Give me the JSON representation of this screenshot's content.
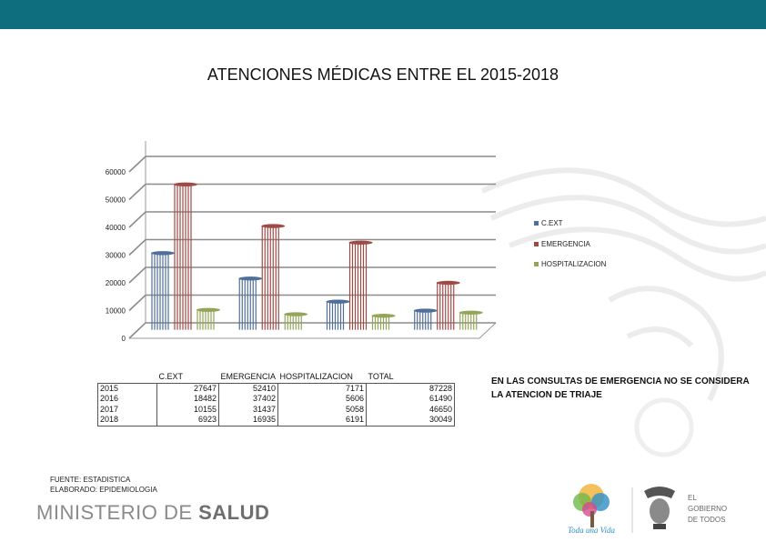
{
  "header": {
    "color": "#0f6e7d"
  },
  "title": "ATENCIONES MÉDICAS ENTRE EL 2015-2018",
  "chart_data": {
    "type": "bar",
    "title": "ATENCIONES MÉDICAS ENTRE EL 2015-2018",
    "categories": [
      "2015",
      "2016",
      "2017",
      "2018"
    ],
    "series": [
      {
        "name": "C.EXT",
        "values": [
          27647,
          18482,
          10155,
          6923
        ],
        "color": "#4f6f99"
      },
      {
        "name": "EMERGENCIA",
        "values": [
          52410,
          37402,
          31437,
          16935
        ],
        "color": "#a04a46"
      },
      {
        "name": "HOSPITALIZACION",
        "values": [
          7171,
          5606,
          5058,
          6191
        ],
        "color": "#93a558"
      }
    ],
    "ylim": [
      0,
      60000
    ],
    "yticks": [
      "0",
      "10000",
      "20000",
      "30000",
      "40000",
      "50000",
      "60000"
    ],
    "grid": true,
    "legend_position": "right",
    "xlabel": "",
    "ylabel": ""
  },
  "table": {
    "headers": [
      "",
      "C.EXT",
      "EMERGENCIA",
      "HOSPITALIZACION",
      "TOTAL"
    ],
    "rows": [
      [
        "2015",
        "27647",
        "52410",
        "7171",
        "87228"
      ],
      [
        "2016",
        "18482",
        "37402",
        "5606",
        "61490"
      ],
      [
        "2017",
        "10155",
        "31437",
        "5058",
        "46650"
      ],
      [
        "2018",
        "6923",
        "16935",
        "6191",
        "30049"
      ]
    ]
  },
  "note": "EN LAS CONSULTAS DE EMERGENCIA NO SE CONSIDERA LA ATENCION DE TRIAJE",
  "credits": {
    "source": "FUENTE: ESTADISTICA",
    "author": "ELABORADO: EPIDEMIOLOGIA"
  },
  "footer": {
    "ministry_light": "MINISTERIO DE ",
    "ministry_bold": "SALUD",
    "logo_left_text": "Toda una Vida",
    "logo_right_lines": [
      "EL",
      "GOBIERNO",
      "DE TODOS"
    ]
  }
}
